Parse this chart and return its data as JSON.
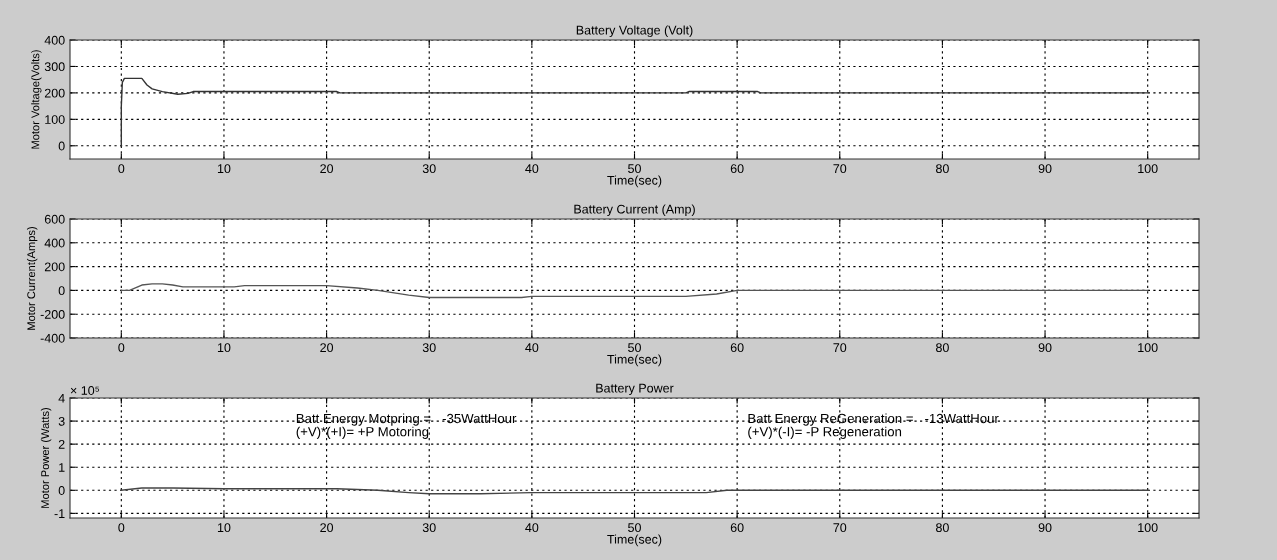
{
  "chart_data": [
    {
      "type": "line",
      "title": "Battery Voltage (Volt)",
      "xlabel": "Time(sec)",
      "ylabel": "Motor Voltage(Volts)",
      "xlim": [
        -5,
        105
      ],
      "xticks": [
        0,
        10,
        20,
        30,
        40,
        50,
        60,
        70,
        80,
        90,
        100
      ],
      "ylim": [
        -50,
        400
      ],
      "yticks": [
        0,
        100,
        200,
        300,
        400
      ],
      "grid": true,
      "line_style": "solid",
      "marker": "none",
      "series": [
        {
          "color": "#333333",
          "x": [
            0,
            0,
            0.1,
            0.3,
            1,
            2,
            2.5,
            3,
            4,
            5.5,
            6.5,
            7,
            21,
            21.3,
            55,
            55.3,
            62,
            62.3,
            100
          ],
          "values": [
            0,
            150,
            240,
            255,
            255,
            255,
            230,
            215,
            205,
            195,
            198,
            205,
            205,
            200,
            200,
            205,
            205,
            200,
            200
          ]
        }
      ]
    },
    {
      "type": "line",
      "title": "Battery Current (Amp)",
      "xlabel": "Time(sec)",
      "ylabel": "Motor Current(Amps)",
      "xlim": [
        -5,
        105
      ],
      "xticks": [
        0,
        10,
        20,
        30,
        40,
        50,
        60,
        70,
        80,
        90,
        100
      ],
      "ylim": [
        -400,
        600
      ],
      "yticks": [
        -400,
        -200,
        0,
        200,
        400,
        600
      ],
      "grid": true,
      "line_style": "solid",
      "marker": "none",
      "series": [
        {
          "color": "#555555",
          "x": [
            0,
            0.8,
            2,
            3,
            4,
            5,
            6,
            11,
            12,
            20,
            23,
            25,
            28,
            30,
            39,
            40,
            55,
            58,
            60,
            100
          ],
          "values": [
            0,
            0,
            45,
            55,
            55,
            45,
            30,
            30,
            40,
            40,
            20,
            0,
            -40,
            -60,
            -60,
            -50,
            -50,
            -30,
            0,
            0
          ]
        }
      ]
    },
    {
      "type": "line",
      "title": "Battery Power",
      "xlabel": "Time(sec)",
      "ylabel": "Motor Power (Watts)",
      "xlim": [
        -5,
        105
      ],
      "xticks": [
        0,
        10,
        20,
        30,
        40,
        50,
        60,
        70,
        80,
        90,
        100
      ],
      "ylim": [
        -1.2,
        4
      ],
      "yticks": [
        -1,
        0,
        1,
        2,
        3,
        4
      ],
      "grid": true,
      "line_style": "solid",
      "marker": "none",
      "annotations": [
        "× 10⁵",
        "Batt Energy Motpring =   -35WattHour",
        "(+V)*(+I)= +P Motoring",
        "Batt Energy ReGeneration =   -13WattHour",
        "(+V)*(-I)= -P Regeneration"
      ],
      "series": [
        {
          "color": "#444444",
          "x": [
            0,
            2,
            5,
            10,
            21,
            25,
            28,
            30,
            35,
            40,
            57,
            59,
            100
          ],
          "values": [
            0,
            0.1,
            0.1,
            0.07,
            0.07,
            0,
            -0.1,
            -0.15,
            -0.15,
            -0.1,
            -0.1,
            0,
            0
          ]
        }
      ]
    }
  ]
}
